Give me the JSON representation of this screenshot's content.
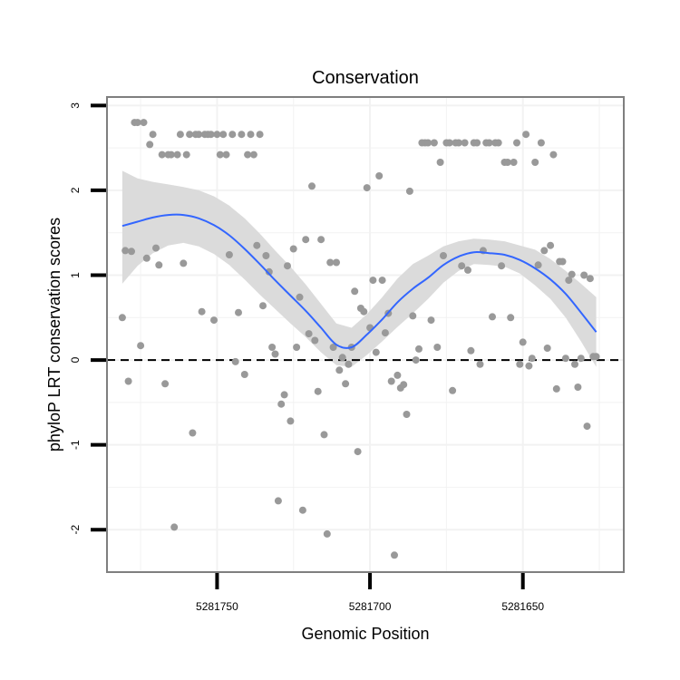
{
  "chart_data": {
    "type": "scatter",
    "title": "Conservation",
    "xlabel": "Genomic Position",
    "ylabel": "phyloP LRT conservation scores",
    "x_reversed": true,
    "xlim": [
      5281786,
      5281617
    ],
    "ylim": [
      -2.5,
      3.1
    ],
    "x_ticks": [
      5281750,
      5281700,
      5281650
    ],
    "x_tick_labels": [
      "5281750",
      "5281700",
      "5281650"
    ],
    "y_ticks": [
      -2,
      -1,
      0,
      1,
      2,
      3
    ],
    "y_tick_labels": [
      "-2",
      "-1",
      "0",
      "1",
      "2",
      "3"
    ],
    "reference_line": {
      "y": 0,
      "style": "dashed"
    },
    "grid": true,
    "colors": {
      "points": "#999999",
      "smooth": "#3366ff",
      "ribbon": "#d9d9d9",
      "grid": "#f2f2f2",
      "border": "#7f7f7f"
    },
    "series": [
      {
        "name": "phyloP points",
        "kind": "points",
        "points": [
          [
            5281781,
            0.5
          ],
          [
            5281780,
            1.29
          ],
          [
            5281779,
            -0.25
          ],
          [
            5281778,
            1.28
          ],
          [
            5281777,
            2.8
          ],
          [
            5281776,
            2.8
          ],
          [
            5281775,
            0.17
          ],
          [
            5281774,
            2.8
          ],
          [
            5281773,
            1.2
          ],
          [
            5281772,
            2.54
          ],
          [
            5281771,
            2.66
          ],
          [
            5281770,
            1.32
          ],
          [
            5281769,
            1.12
          ],
          [
            5281768,
            2.42
          ],
          [
            5281767,
            -0.28
          ],
          [
            5281766,
            2.42
          ],
          [
            5281765,
            2.42
          ],
          [
            5281764,
            -1.97
          ],
          [
            5281763,
            2.42
          ],
          [
            5281762,
            2.66
          ],
          [
            5281761,
            1.14
          ],
          [
            5281760,
            2.42
          ],
          [
            5281759,
            2.66
          ],
          [
            5281758,
            -0.86
          ],
          [
            5281757,
            2.66
          ],
          [
            5281756,
            2.66
          ],
          [
            5281755,
            0.57
          ],
          [
            5281754,
            2.66
          ],
          [
            5281753,
            2.66
          ],
          [
            5281752,
            2.66
          ],
          [
            5281751,
            0.47
          ],
          [
            5281750,
            2.66
          ],
          [
            5281749,
            2.42
          ],
          [
            5281748,
            2.66
          ],
          [
            5281747,
            2.42
          ],
          [
            5281746,
            1.24
          ],
          [
            5281745,
            2.66
          ],
          [
            5281744,
            -0.02
          ],
          [
            5281743,
            0.56
          ],
          [
            5281742,
            2.66
          ],
          [
            5281741,
            -0.17
          ],
          [
            5281740,
            2.42
          ],
          [
            5281739,
            2.66
          ],
          [
            5281738,
            2.42
          ],
          [
            5281737,
            1.35
          ],
          [
            5281736,
            2.66
          ],
          [
            5281735,
            0.64
          ],
          [
            5281734,
            1.23
          ],
          [
            5281733,
            1.04
          ],
          [
            5281732,
            0.15
          ],
          [
            5281731,
            0.07
          ],
          [
            5281730,
            -1.66
          ],
          [
            5281729,
            -0.52
          ],
          [
            5281728,
            -0.41
          ],
          [
            5281727,
            1.11
          ],
          [
            5281726,
            -0.72
          ],
          [
            5281725,
            1.31
          ],
          [
            5281724,
            0.15
          ],
          [
            5281723,
            0.74
          ],
          [
            5281722,
            -1.77
          ],
          [
            5281721,
            1.42
          ],
          [
            5281720,
            0.31
          ],
          [
            5281719,
            2.05
          ],
          [
            5281718,
            0.23
          ],
          [
            5281717,
            -0.37
          ],
          [
            5281716,
            1.42
          ],
          [
            5281715,
            -0.88
          ],
          [
            5281714,
            -2.05
          ],
          [
            5281713,
            1.15
          ],
          [
            5281712,
            0.15
          ],
          [
            5281711,
            1.15
          ],
          [
            5281710,
            -0.12
          ],
          [
            5281709,
            0.03
          ],
          [
            5281708,
            -0.28
          ],
          [
            5281707,
            -0.05
          ],
          [
            5281706,
            0.15
          ],
          [
            5281705,
            0.81
          ],
          [
            5281704,
            -1.08
          ],
          [
            5281703,
            0.61
          ],
          [
            5281702,
            0.57
          ],
          [
            5281701,
            2.03
          ],
          [
            5281700,
            0.38
          ],
          [
            5281699,
            0.94
          ],
          [
            5281698,
            0.09
          ],
          [
            5281697,
            2.17
          ],
          [
            5281696,
            0.94
          ],
          [
            5281695,
            0.32
          ],
          [
            5281694,
            0.55
          ],
          [
            5281693,
            -0.25
          ],
          [
            5281692,
            -2.3
          ],
          [
            5281691,
            -0.18
          ],
          [
            5281690,
            -0.33
          ],
          [
            5281689,
            -0.29
          ],
          [
            5281688,
            -0.64
          ],
          [
            5281687,
            1.99
          ],
          [
            5281686,
            0.52
          ],
          [
            5281685,
            0
          ],
          [
            5281684,
            0.13
          ],
          [
            5281683,
            2.56
          ],
          [
            5281682,
            2.56
          ],
          [
            5281681,
            2.56
          ],
          [
            5281680,
            0.47
          ],
          [
            5281679,
            2.56
          ],
          [
            5281678,
            0.15
          ],
          [
            5281677,
            2.33
          ],
          [
            5281676,
            1.23
          ],
          [
            5281675,
            2.56
          ],
          [
            5281674,
            2.56
          ],
          [
            5281673,
            -0.36
          ],
          [
            5281672,
            2.56
          ],
          [
            5281671,
            2.56
          ],
          [
            5281670,
            1.11
          ],
          [
            5281669,
            2.56
          ],
          [
            5281668,
            1.06
          ],
          [
            5281667,
            0.11
          ],
          [
            5281666,
            2.56
          ],
          [
            5281665,
            2.56
          ],
          [
            5281664,
            -0.05
          ],
          [
            5281663,
            1.29
          ],
          [
            5281662,
            2.56
          ],
          [
            5281661,
            2.56
          ],
          [
            5281660,
            0.51
          ],
          [
            5281659,
            2.56
          ],
          [
            5281658,
            2.56
          ],
          [
            5281657,
            1.11
          ],
          [
            5281656,
            2.33
          ],
          [
            5281655,
            2.33
          ],
          [
            5281654,
            0.5
          ],
          [
            5281653,
            2.33
          ],
          [
            5281652,
            2.56
          ],
          [
            5281651,
            -0.05
          ],
          [
            5281650,
            0.21
          ],
          [
            5281649,
            2.66
          ],
          [
            5281648,
            -0.07
          ],
          [
            5281647,
            0.02
          ],
          [
            5281646,
            2.33
          ],
          [
            5281645,
            1.12
          ],
          [
            5281644,
            2.56
          ],
          [
            5281643,
            1.29
          ],
          [
            5281642,
            0.14
          ],
          [
            5281641,
            1.35
          ],
          [
            5281640,
            2.42
          ],
          [
            5281639,
            -0.34
          ],
          [
            5281638,
            1.16
          ],
          [
            5281637,
            1.16
          ],
          [
            5281636,
            0.02
          ],
          [
            5281635,
            0.94
          ],
          [
            5281634,
            1.01
          ],
          [
            5281633,
            -0.05
          ],
          [
            5281632,
            -0.32
          ],
          [
            5281631,
            0.02
          ],
          [
            5281630,
            1.0
          ],
          [
            5281629,
            -0.78
          ],
          [
            5281628,
            0.96
          ],
          [
            5281627,
            0.04
          ],
          [
            5281626,
            0.04
          ]
        ]
      },
      {
        "name": "loess fit",
        "kind": "smooth",
        "x": [
          5281781,
          5281776,
          5281771,
          5281766,
          5281761,
          5281756,
          5281751,
          5281746,
          5281741,
          5281736,
          5281731,
          5281726,
          5281721,
          5281716,
          5281711,
          5281706,
          5281701,
          5281696,
          5281691,
          5281686,
          5281681,
          5281676,
          5281671,
          5281666,
          5281661,
          5281656,
          5281651,
          5281646,
          5281641,
          5281636,
          5281631,
          5281626
        ],
        "y": [
          1.58,
          1.63,
          1.68,
          1.71,
          1.71,
          1.67,
          1.59,
          1.47,
          1.31,
          1.13,
          0.94,
          0.76,
          0.58,
          0.38,
          0.18,
          0.15,
          0.3,
          0.48,
          0.68,
          0.84,
          0.97,
          1.12,
          1.22,
          1.27,
          1.26,
          1.24,
          1.18,
          1.08,
          0.95,
          0.78,
          0.56,
          0.33
        ],
        "lower": [
          0.9,
          1.11,
          1.26,
          1.35,
          1.38,
          1.34,
          1.25,
          1.12,
          0.95,
          0.77,
          0.6,
          0.43,
          0.27,
          0.09,
          -0.06,
          -0.08,
          0.06,
          0.22,
          0.39,
          0.55,
          0.72,
          0.91,
          1.05,
          1.13,
          1.12,
          1.1,
          1.02,
          0.88,
          0.72,
          0.5,
          0.22,
          -0.08
        ],
        "upper": [
          2.23,
          2.14,
          2.1,
          2.07,
          2.04,
          2.0,
          1.93,
          1.82,
          1.67,
          1.49,
          1.29,
          1.1,
          0.89,
          0.66,
          0.43,
          0.38,
          0.54,
          0.74,
          0.96,
          1.13,
          1.23,
          1.34,
          1.4,
          1.43,
          1.42,
          1.4,
          1.35,
          1.3,
          1.19,
          1.05,
          0.9,
          0.74
        ]
      }
    ]
  }
}
